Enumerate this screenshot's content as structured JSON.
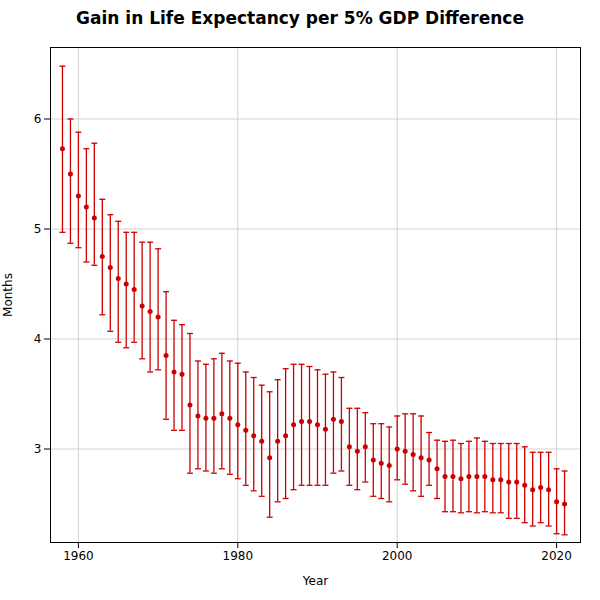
{
  "chart_data": {
    "type": "errorbar",
    "title": "Gain in Life Expectancy per 5% GDP Difference",
    "xlabel": "Year",
    "ylabel": "Months",
    "x": [
      1958,
      1959,
      1960,
      1961,
      1962,
      1963,
      1964,
      1965,
      1966,
      1967,
      1968,
      1969,
      1970,
      1971,
      1972,
      1973,
      1974,
      1975,
      1976,
      1977,
      1978,
      1979,
      1980,
      1981,
      1982,
      1983,
      1984,
      1985,
      1986,
      1987,
      1988,
      1989,
      1990,
      1991,
      1992,
      1993,
      1994,
      1995,
      1996,
      1997,
      1998,
      1999,
      2000,
      2001,
      2002,
      2003,
      2004,
      2005,
      2006,
      2007,
      2008,
      2009,
      2010,
      2011,
      2012,
      2013,
      2014,
      2015,
      2016,
      2017,
      2018,
      2019,
      2020,
      2021
    ],
    "values": [
      5.73,
      5.5,
      5.3,
      5.2,
      5.1,
      4.75,
      4.65,
      4.55,
      4.5,
      4.45,
      4.3,
      4.25,
      4.2,
      3.85,
      3.7,
      3.68,
      3.4,
      3.3,
      3.28,
      3.28,
      3.32,
      3.28,
      3.22,
      3.17,
      3.12,
      3.07,
      2.92,
      3.07,
      3.12,
      3.22,
      3.25,
      3.25,
      3.22,
      3.18,
      3.27,
      3.25,
      3.02,
      2.98,
      3.02,
      2.9,
      2.87,
      2.85,
      3.0,
      2.98,
      2.95,
      2.92,
      2.9,
      2.82,
      2.75,
      2.75,
      2.73,
      2.75,
      2.75,
      2.75,
      2.72,
      2.72,
      2.7,
      2.7,
      2.67,
      2.63,
      2.65,
      2.63,
      2.52,
      2.5
    ],
    "upper": [
      6.48,
      6.0,
      5.88,
      5.73,
      5.78,
      5.27,
      5.13,
      5.07,
      4.97,
      4.97,
      4.88,
      4.88,
      4.82,
      4.43,
      4.17,
      4.13,
      4.05,
      3.8,
      3.77,
      3.82,
      3.87,
      3.8,
      3.78,
      3.7,
      3.65,
      3.58,
      3.52,
      3.63,
      3.73,
      3.77,
      3.77,
      3.75,
      3.72,
      3.68,
      3.7,
      3.65,
      3.37,
      3.37,
      3.33,
      3.23,
      3.23,
      3.2,
      3.3,
      3.32,
      3.32,
      3.3,
      3.15,
      3.08,
      3.07,
      3.08,
      3.05,
      3.07,
      3.1,
      3.07,
      3.05,
      3.05,
      3.05,
      3.05,
      3.02,
      2.97,
      2.97,
      2.97,
      2.82,
      2.8
    ],
    "lower": [
      4.97,
      4.87,
      4.83,
      4.7,
      4.67,
      4.22,
      4.07,
      3.97,
      3.92,
      3.97,
      3.82,
      3.7,
      3.72,
      3.27,
      3.17,
      3.17,
      2.78,
      2.82,
      2.8,
      2.78,
      2.82,
      2.77,
      2.73,
      2.67,
      2.62,
      2.57,
      2.38,
      2.52,
      2.55,
      2.63,
      2.67,
      2.67,
      2.67,
      2.67,
      2.78,
      2.8,
      2.67,
      2.63,
      2.7,
      2.57,
      2.55,
      2.52,
      2.72,
      2.68,
      2.62,
      2.57,
      2.67,
      2.55,
      2.43,
      2.43,
      2.42,
      2.43,
      2.42,
      2.43,
      2.42,
      2.42,
      2.37,
      2.37,
      2.33,
      2.3,
      2.33,
      2.3,
      2.23,
      2.22
    ],
    "color": "#cc0000",
    "xlim": [
      1956.5,
      2023.0
    ],
    "xticks": [
      1960,
      1980,
      2000,
      2020
    ],
    "ylim": [
      2.15,
      6.65
    ],
    "yticks": [
      3,
      4,
      5,
      6
    ],
    "grid": true
  }
}
